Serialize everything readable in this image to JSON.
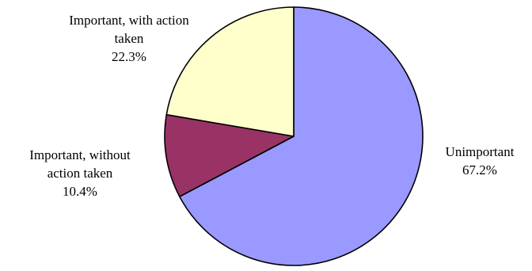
{
  "chart_data": {
    "type": "pie",
    "title": "",
    "start_angle_deg": 0,
    "direction": "clockwise",
    "slices": [
      {
        "name": "Unimportant",
        "value": 67.2,
        "value_label": "67.2%",
        "color": "#9999ff",
        "label_lines": [
          "Unimportant",
          "67.2%"
        ]
      },
      {
        "name": "Important, without action taken",
        "value": 10.4,
        "value_label": "10.4%",
        "color": "#993366",
        "label_lines": [
          "Important, without",
          "action taken",
          "10.4%"
        ]
      },
      {
        "name": "Important, with action taken",
        "value": 22.3,
        "value_label": "22.3%",
        "color": "#ffffcc",
        "label_lines": [
          "Important, with action",
          "taken",
          "22.3%"
        ]
      }
    ],
    "legend": "none"
  }
}
